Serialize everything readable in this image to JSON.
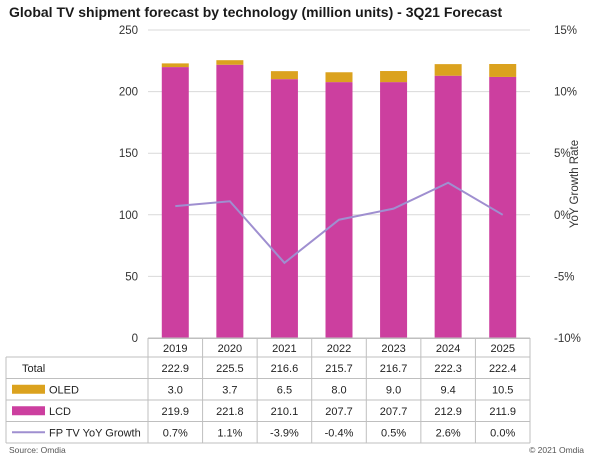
{
  "chart_data": {
    "type": "bar",
    "title": "Global TV shipment forecast by technology (million units) - 3Q21 Forecast",
    "categories": [
      "2019",
      "2020",
      "2021",
      "2022",
      "2023",
      "2024",
      "2025"
    ],
    "series": [
      {
        "name": "LCD",
        "type": "bar",
        "stack": "tv",
        "color": "#cc3f9f",
        "values": [
          219.9,
          221.8,
          210.1,
          207.7,
          207.7,
          212.9,
          211.9
        ]
      },
      {
        "name": "OLED",
        "type": "bar",
        "stack": "tv",
        "color": "#dba21e",
        "values": [
          3.0,
          3.7,
          6.5,
          8.0,
          9.0,
          9.4,
          10.5
        ]
      },
      {
        "name": "FP TV YoY Growth",
        "type": "line",
        "axis": "right",
        "color": "#9f8fd0",
        "values": [
          0.7,
          1.1,
          -3.9,
          -0.4,
          0.5,
          2.6,
          0.0
        ]
      }
    ],
    "totals": [
      222.9,
      225.5,
      216.6,
      215.7,
      216.7,
      222.3,
      222.4
    ],
    "y_left": {
      "label": "",
      "ylim": [
        0,
        250
      ],
      "ticks": [
        0,
        50,
        100,
        150,
        200,
        250
      ]
    },
    "y_right": {
      "label": "YoY Growth Rate",
      "ylim": [
        -10,
        15
      ],
      "ticks": [
        -10,
        -5,
        0,
        5,
        10,
        15
      ],
      "tick_labels": [
        "-10%",
        "-5%",
        "0%",
        "5%",
        "10%",
        "15%"
      ]
    },
    "grid": true,
    "legend": "data-table-below",
    "table": {
      "rows": [
        {
          "label": "Total",
          "values": [
            "222.9",
            "225.5",
            "216.6",
            "215.7",
            "216.7",
            "222.3",
            "222.4"
          ]
        },
        {
          "label": "OLED",
          "values": [
            "3.0",
            "3.7",
            "6.5",
            "8.0",
            "9.0",
            "9.4",
            "10.5"
          ]
        },
        {
          "label": "LCD",
          "values": [
            "219.9",
            "221.8",
            "210.1",
            "207.7",
            "207.7",
            "212.9",
            "211.9"
          ]
        },
        {
          "label": "FP TV YoY Growth",
          "values": [
            "0.7%",
            "1.1%",
            "-3.9%",
            "-0.4%",
            "0.5%",
            "2.6%",
            "0.0%"
          ]
        }
      ]
    }
  },
  "footer": {
    "source": "Source: Omdia",
    "copyright": "© 2021 Omdia"
  }
}
